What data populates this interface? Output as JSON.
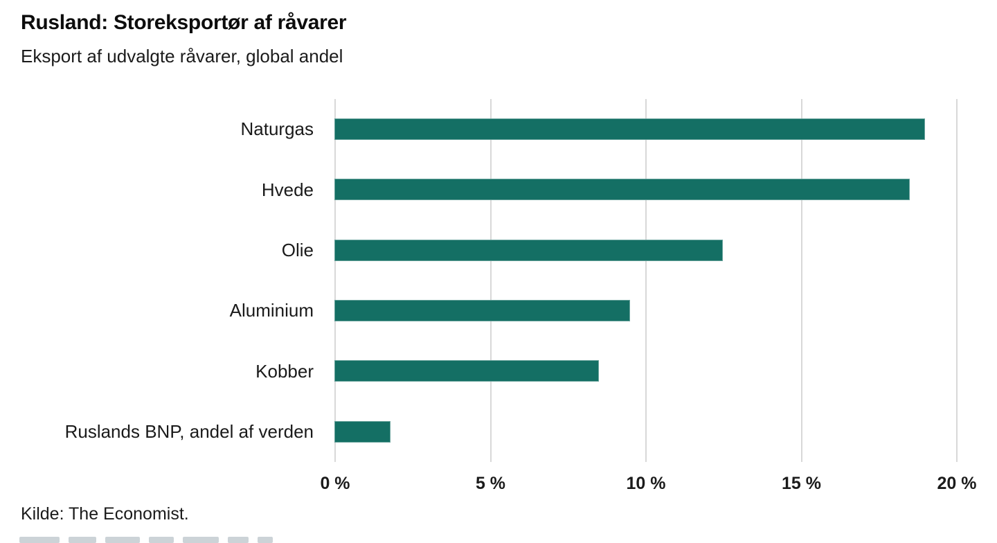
{
  "chart_data": {
    "type": "bar",
    "orientation": "horizontal",
    "title": "Rusland: Storeksportør af råvarer",
    "subtitle": "Eksport af udvalgte råvarer, global andel",
    "source": "Kilde: The Economist.",
    "categories": [
      "Naturgas",
      "Hvede",
      "Olie",
      "Aluminium",
      "Kobber",
      "Ruslands BNP, andel af verden"
    ],
    "values": [
      19,
      18.5,
      12.5,
      9.5,
      8.5,
      1.8
    ],
    "unit": "%",
    "xlabel": "",
    "ylabel": "",
    "xlim": [
      0,
      20
    ],
    "x_ticks": [
      0,
      5,
      10,
      15,
      20
    ],
    "x_tick_labels": [
      "0 %",
      "5 %",
      "10 %",
      "15 %",
      "20 %"
    ],
    "grid": "vertical-only",
    "legend": "none",
    "bar_color": "#146f64",
    "gridline_color": "#d8d8d8",
    "text_color": "#1a1a1a"
  }
}
